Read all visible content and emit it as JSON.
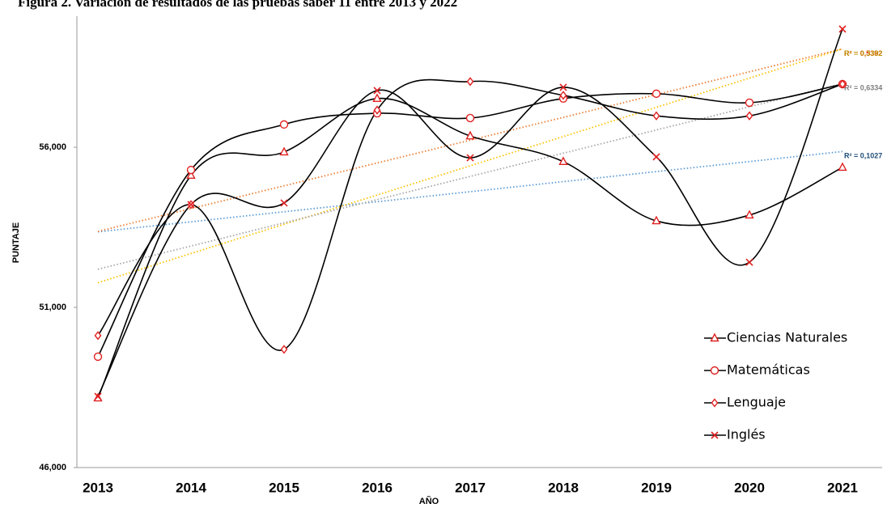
{
  "chart_data": {
    "type": "line",
    "title": "Figura 2. Variación de resultados de las pruebas saber 11 entre 2013 y 2022",
    "x_label": "AÑO",
    "y_label": "PUNTAJE",
    "categories": [
      "2013",
      "2014",
      "2015",
      "2016",
      "2017",
      "2018",
      "2019",
      "2020",
      "2021"
    ],
    "ylim": [
      46000,
      60000
    ],
    "yticks": [
      {
        "value": 46000,
        "label": "46,000"
      },
      {
        "value": 51000,
        "label": "51,000"
      },
      {
        "value": 56000,
        "label": "56,000"
      }
    ],
    "series": [
      {
        "name": "Ciencias Naturales",
        "color": "#000000",
        "marker": "triangle",
        "marker_color": "#e02020",
        "values": [
          48170,
          55120,
          55850,
          57520,
          56350,
          55550,
          53700,
          53880,
          55370
        ],
        "trendline": {
          "label": "R² = 0,1027",
          "color": "#5b9bd5",
          "label_color": "#1f4e79"
        }
      },
      {
        "name": "Matemáticas",
        "color": "#000000",
        "marker": "circle",
        "marker_color": "#e02020",
        "values": [
          49460,
          55290,
          56710,
          57060,
          56910,
          57520,
          57670,
          57390,
          57970
        ],
        "trendline": {
          "label": "R² = 0,5392",
          "color": "#ed7d31",
          "label_color": "#ff0000"
        }
      },
      {
        "name": "Lenguaje",
        "color": "#000000",
        "marker": "diamond",
        "marker_color": "#e02020",
        "values": [
          50120,
          54210,
          49690,
          57160,
          58050,
          57620,
          56980,
          56980,
          57970
        ],
        "trendline": {
          "label": "R² = 0,3382",
          "color": "#ffc000",
          "label_color": "#bf9000"
        }
      },
      {
        "name": "Inglés",
        "color": "#000000",
        "marker": "x",
        "marker_color": "#e02020",
        "values": [
          48220,
          54210,
          54260,
          57770,
          55670,
          57870,
          55700,
          52410,
          59690
        ],
        "trendline": {
          "label": "R² = 0,6334",
          "color": "#a5a5a5",
          "label_color": "#7f7f7f"
        }
      }
    ]
  }
}
